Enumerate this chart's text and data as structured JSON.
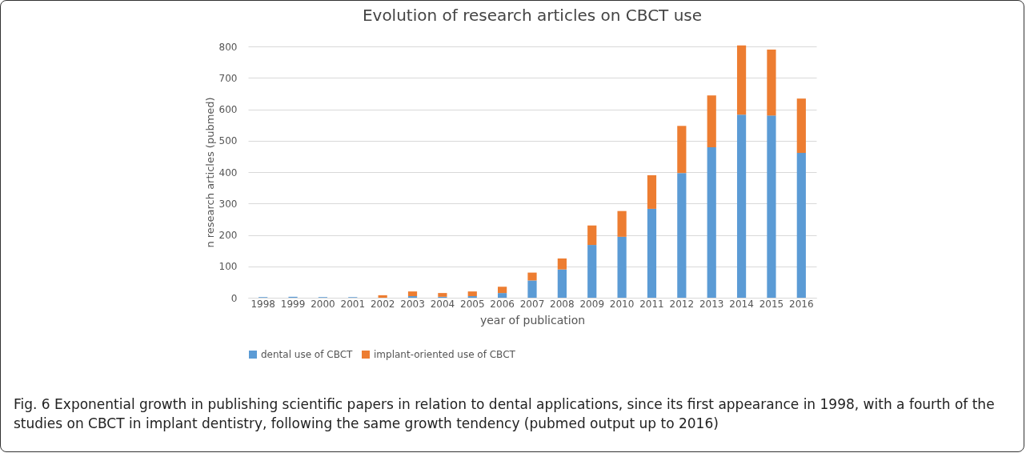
{
  "chart_data": {
    "type": "bar",
    "title": "Evolution of research articles on CBCT use",
    "xlabel": "year of publication",
    "ylabel": "n research articles (pubmed)",
    "categories": [
      "1998",
      "1999",
      "2000",
      "2001",
      "2002",
      "2003",
      "2004",
      "2005",
      "2006",
      "2007",
      "2008",
      "2009",
      "2010",
      "2011",
      "2012",
      "2013",
      "2014",
      "2015",
      "2016"
    ],
    "series": [
      {
        "name": "dental use of CBCT",
        "color": "#5b9bd5",
        "values": [
          2,
          3,
          2,
          2,
          0,
          5,
          3,
          5,
          15,
          55,
          90,
          168,
          194,
          283,
          397,
          479,
          583,
          580,
          461
        ]
      },
      {
        "name": "implant-oriented use of CBCT",
        "color": "#ed7d31",
        "values": [
          0,
          0,
          0,
          0,
          8,
          15,
          12,
          15,
          20,
          25,
          35,
          62,
          82,
          107,
          150,
          165,
          220,
          210,
          173
        ]
      }
    ],
    "stacked": true,
    "ylim": [
      0,
      800
    ],
    "yticks": [
      0,
      100,
      200,
      300,
      400,
      500,
      600,
      700,
      800
    ],
    "grid": "y",
    "legend": "bottom",
    "annotations": [
      "Fig. 6 Exponential growth in publishing scientific papers in relation to dental applications, since its first appearance in 1998, with a fourth of the studies on CBCT in implant dentistry, following the same growth tendency (pubmed output up to 2016)"
    ]
  }
}
